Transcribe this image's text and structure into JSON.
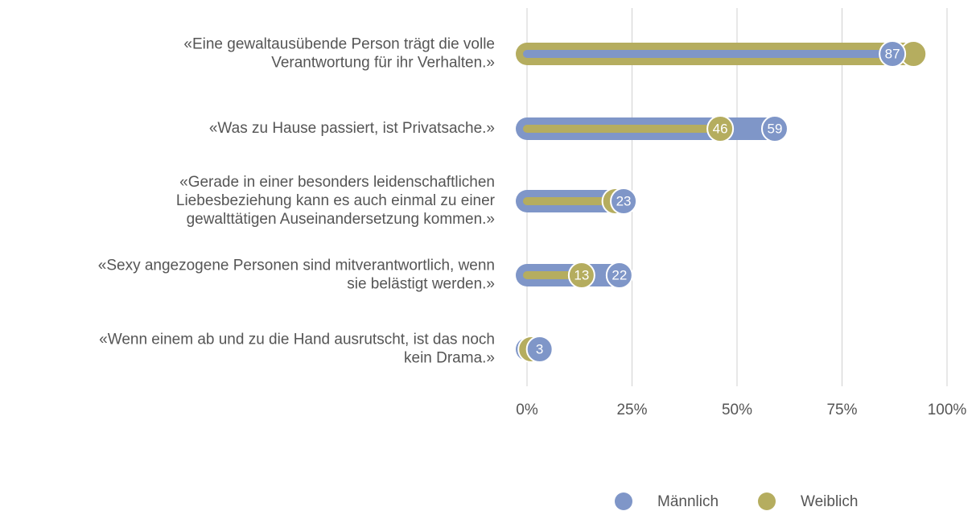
{
  "chart_data": {
    "type": "dumbbell_bar",
    "categories": [
      [
        "«Eine gewaltausübende Person trägt die volle",
        "Verantwortung für ihr Verhalten.»"
      ],
      [
        "«Was zu Hause passiert, ist Privatsache.»"
      ],
      [
        "«Gerade in einer besonders leidenschaftlichen",
        "Liebesbeziehung kann es auch einmal zu einer",
        "gewalttätigen Auseinandersetzung kommen.»"
      ],
      [
        "«Sexy angezogene Personen sind mitverantwortlich, wenn",
        "sie belästigt werden.»"
      ],
      [
        "«Wenn einem ab und zu die Hand ausrutscht, ist das noch",
        "kein Drama.»"
      ]
    ],
    "series": [
      {
        "name": "Männlich",
        "color": "#7f96c8",
        "values": [
          87,
          59,
          23,
          22,
          3
        ],
        "value_labels": [
          "87",
          "59",
          "23",
          "22",
          "3"
        ]
      },
      {
        "name": "Weiblich",
        "color": "#b5ad5f",
        "values": [
          92,
          46,
          21,
          13,
          1
        ],
        "value_labels": [
          null,
          "46",
          null,
          "13",
          null
        ]
      }
    ],
    "xlim": [
      0,
      100
    ],
    "xticks": [
      {
        "value": 0,
        "label": "0%"
      },
      {
        "value": 25,
        "label": "25%"
      },
      {
        "value": 50,
        "label": "50%"
      },
      {
        "value": 75,
        "label": "75%"
      },
      {
        "value": 100,
        "label": "100%"
      }
    ],
    "grid": true,
    "legend": "bottom"
  }
}
